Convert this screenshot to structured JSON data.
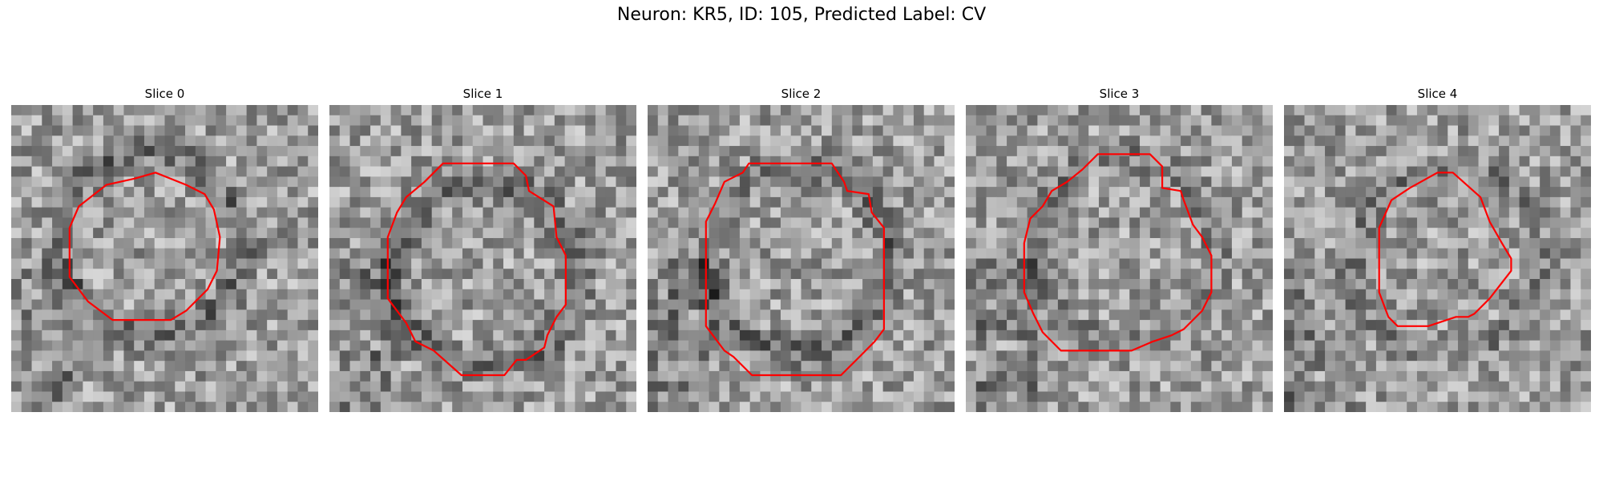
{
  "figure": {
    "title": "Neuron: KR5, ID: 105, Predicted Label: CV",
    "contour_color": "#ff0000",
    "grid_size": 30,
    "panels": [
      {
        "title": "Slice 0",
        "seed": 11,
        "ring": "dark",
        "contour": [
          [
            0.47,
            0.22
          ],
          [
            0.57,
            0.26
          ],
          [
            0.63,
            0.29
          ],
          [
            0.66,
            0.34
          ],
          [
            0.68,
            0.43
          ],
          [
            0.67,
            0.54
          ],
          [
            0.64,
            0.6
          ],
          [
            0.57,
            0.67
          ],
          [
            0.52,
            0.7
          ],
          [
            0.33,
            0.7
          ],
          [
            0.25,
            0.64
          ],
          [
            0.19,
            0.56
          ],
          [
            0.19,
            0.4
          ],
          [
            0.22,
            0.33
          ],
          [
            0.31,
            0.26
          ],
          [
            0.4,
            0.24
          ]
        ]
      },
      {
        "title": "Slice 1",
        "seed": 23,
        "ring": "dark",
        "contour": [
          [
            0.37,
            0.19
          ],
          [
            0.6,
            0.19
          ],
          [
            0.64,
            0.23
          ],
          [
            0.65,
            0.28
          ],
          [
            0.73,
            0.33
          ],
          [
            0.74,
            0.43
          ],
          [
            0.77,
            0.49
          ],
          [
            0.77,
            0.65
          ],
          [
            0.74,
            0.69
          ],
          [
            0.71,
            0.75
          ],
          [
            0.7,
            0.79
          ],
          [
            0.64,
            0.83
          ],
          [
            0.61,
            0.83
          ],
          [
            0.57,
            0.88
          ],
          [
            0.43,
            0.88
          ],
          [
            0.34,
            0.8
          ],
          [
            0.28,
            0.77
          ],
          [
            0.25,
            0.71
          ],
          [
            0.19,
            0.63
          ],
          [
            0.19,
            0.43
          ],
          [
            0.22,
            0.35
          ],
          [
            0.25,
            0.3
          ],
          [
            0.31,
            0.25
          ]
        ]
      },
      {
        "title": "Slice 2",
        "seed": 37,
        "ring": "dark",
        "contour": [
          [
            0.33,
            0.19
          ],
          [
            0.6,
            0.19
          ],
          [
            0.64,
            0.25
          ],
          [
            0.65,
            0.28
          ],
          [
            0.72,
            0.29
          ],
          [
            0.73,
            0.35
          ],
          [
            0.77,
            0.4
          ],
          [
            0.77,
            0.73
          ],
          [
            0.74,
            0.77
          ],
          [
            0.69,
            0.82
          ],
          [
            0.63,
            0.88
          ],
          [
            0.34,
            0.88
          ],
          [
            0.28,
            0.82
          ],
          [
            0.25,
            0.8
          ],
          [
            0.19,
            0.72
          ],
          [
            0.19,
            0.38
          ],
          [
            0.22,
            0.32
          ],
          [
            0.25,
            0.25
          ],
          [
            0.31,
            0.22
          ]
        ]
      },
      {
        "title": "Slice 3",
        "seed": 53,
        "ring": "light",
        "contour": [
          [
            0.43,
            0.16
          ],
          [
            0.6,
            0.16
          ],
          [
            0.64,
            0.2
          ],
          [
            0.64,
            0.27
          ],
          [
            0.7,
            0.28
          ],
          [
            0.71,
            0.31
          ],
          [
            0.74,
            0.39
          ],
          [
            0.77,
            0.43
          ],
          [
            0.8,
            0.49
          ],
          [
            0.8,
            0.61
          ],
          [
            0.77,
            0.67
          ],
          [
            0.71,
            0.73
          ],
          [
            0.67,
            0.75
          ],
          [
            0.61,
            0.77
          ],
          [
            0.54,
            0.8
          ],
          [
            0.31,
            0.8
          ],
          [
            0.25,
            0.74
          ],
          [
            0.22,
            0.68
          ],
          [
            0.19,
            0.61
          ],
          [
            0.19,
            0.45
          ],
          [
            0.21,
            0.37
          ],
          [
            0.25,
            0.33
          ],
          [
            0.28,
            0.28
          ],
          [
            0.33,
            0.25
          ],
          [
            0.38,
            0.21
          ]
        ]
      },
      {
        "title": "Slice 4",
        "seed": 71,
        "ring": "light",
        "contour": [
          [
            0.5,
            0.22
          ],
          [
            0.55,
            0.22
          ],
          [
            0.64,
            0.3
          ],
          [
            0.67,
            0.38
          ],
          [
            0.71,
            0.45
          ],
          [
            0.74,
            0.5
          ],
          [
            0.74,
            0.54
          ],
          [
            0.67,
            0.63
          ],
          [
            0.62,
            0.68
          ],
          [
            0.6,
            0.69
          ],
          [
            0.56,
            0.69
          ],
          [
            0.47,
            0.72
          ],
          [
            0.37,
            0.72
          ],
          [
            0.34,
            0.69
          ],
          [
            0.31,
            0.61
          ],
          [
            0.31,
            0.4
          ],
          [
            0.35,
            0.31
          ],
          [
            0.41,
            0.27
          ]
        ]
      }
    ]
  }
}
